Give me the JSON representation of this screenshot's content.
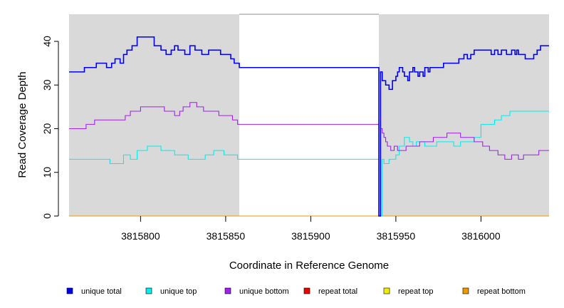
{
  "chart_data": {
    "type": "line",
    "title": "",
    "xlabel": "Coordinate in Reference Genome",
    "ylabel": "Read Coverage Depth",
    "xlim": [
      3815758,
      3816040
    ],
    "ylim": [
      0,
      46
    ],
    "x_ticks": [
      3815800,
      3815850,
      3815900,
      3815950,
      3816000
    ],
    "x_tick_labels": [
      "3815800",
      "3815850",
      "3815900",
      "3815950",
      "3816000"
    ],
    "y_ticks": [
      0,
      10,
      20,
      30,
      40
    ],
    "y_tick_labels": [
      "0",
      "10",
      "20",
      "30",
      "40"
    ],
    "uncovered_region": [
      3815858,
      3815940
    ],
    "grid": false,
    "legend_position": "bottom",
    "series": [
      {
        "name": "unique total",
        "color": "#0000ee",
        "x": [
          3815758,
          3815767,
          3815770,
          3815774,
          3815778,
          3815780,
          3815783,
          3815785,
          3815788,
          3815790,
          3815792,
          3815795,
          3815798,
          3815801,
          3815808,
          3815812,
          3815815,
          3815818,
          3815820,
          3815822,
          3815826,
          3815829,
          3815832,
          3815836,
          3815840,
          3815843,
          3815847,
          3815850,
          3815853,
          3815855,
          3815857,
          3815858,
          3815940,
          3815941,
          3815942,
          3815944,
          3815946,
          3815948,
          3815950,
          3815951,
          3815952,
          3815954,
          3815955,
          3815957,
          3815958,
          3815960,
          3815961,
          3815963,
          3815964,
          3815966,
          3815967,
          3815969,
          3815970,
          3815974,
          3815978,
          3815980,
          3815985,
          3815987,
          3815990,
          3815992,
          3815994,
          3815996,
          3816004,
          3816006,
          3816008,
          3816010,
          3816012,
          3816015,
          3816018,
          3816020,
          3816021,
          3816022,
          3816024,
          3816026,
          3816031,
          3816033,
          3816035,
          3816040
        ],
        "y": [
          33,
          34,
          34,
          35,
          35,
          34,
          35,
          36,
          35,
          37,
          38,
          39,
          41,
          41,
          39,
          38,
          37,
          38,
          39,
          38,
          37,
          39,
          38,
          37,
          38,
          38,
          37,
          37,
          36,
          35,
          35,
          34,
          0,
          33,
          31,
          30,
          29,
          31,
          32,
          33,
          34,
          33,
          32,
          31,
          33,
          34,
          33,
          32,
          33,
          32,
          34,
          33,
          34,
          34,
          35,
          35,
          35,
          36,
          37,
          36,
          37,
          38,
          38,
          37,
          38,
          37,
          38,
          37,
          38,
          37,
          38,
          37,
          37,
          36,
          37,
          38,
          39,
          39
        ]
      },
      {
        "name": "unique top",
        "color": "#00eeee",
        "x": [
          3815758,
          3815778,
          3815782,
          3815784,
          3815790,
          3815794,
          3815798,
          3815804,
          3815808,
          3815812,
          3815815,
          3815820,
          3815828,
          3815834,
          3815838,
          3815843,
          3815849,
          3815857,
          3815858,
          3815940,
          3815942,
          3815943,
          3815944,
          3815946,
          3815950,
          3815952,
          3815955,
          3815958,
          3815960,
          3815962,
          3815967,
          3815974,
          3815978,
          3815984,
          3815988,
          3815992,
          3815996,
          3816000,
          3816008,
          3816012,
          3816017,
          3816040
        ],
        "y": [
          13,
          13,
          12,
          12,
          14,
          13,
          15,
          16,
          16,
          15,
          15,
          14,
          13,
          13,
          14,
          15,
          14,
          13,
          13,
          0,
          13,
          12,
          12,
          13,
          14,
          16,
          18,
          17,
          16,
          17,
          16,
          17,
          17,
          16,
          17,
          17,
          18,
          21,
          22,
          23,
          24,
          24
        ],
        "dashed": true
      },
      {
        "name": "unique bottom",
        "color": "#a020f0",
        "x": [
          3815758,
          3815768,
          3815773,
          3815780,
          3815788,
          3815791,
          3815794,
          3815797,
          3815800,
          3815808,
          3815814,
          3815817,
          3815820,
          3815823,
          3815825,
          3815829,
          3815833,
          3815837,
          3815846,
          3815850,
          3815854,
          3815857,
          3815858,
          3815940,
          3815941,
          3815942,
          3815943,
          3815944,
          3815945,
          3815946,
          3815947,
          3815949,
          3815951,
          3815954,
          3815956,
          3815960,
          3815964,
          3815968,
          3815972,
          3815976,
          3815980,
          3815988,
          3815992,
          3815996,
          3815998,
          3816001,
          3816005,
          3816010,
          3816014,
          3816018,
          3816022,
          3816025,
          3816030,
          3816034,
          3816040
        ],
        "y": [
          20,
          21,
          22,
          22,
          22,
          23,
          24,
          24,
          25,
          25,
          24,
          24,
          23,
          24,
          25,
          26,
          25,
          24,
          23,
          23,
          22,
          21,
          21,
          0,
          20,
          19,
          18,
          17,
          16,
          16,
          15,
          16,
          15,
          15,
          16,
          16,
          17,
          17,
          18,
          18,
          19,
          18,
          18,
          17,
          17,
          16,
          15,
          14,
          13,
          14,
          13,
          14,
          14,
          15,
          15
        ]
      },
      {
        "name": "repeat total",
        "color": "#ee0000",
        "x": [
          3815758,
          3816040
        ],
        "y": [
          0,
          0
        ]
      },
      {
        "name": "repeat top",
        "color": "#eeee00",
        "x": [
          3815758,
          3816040
        ],
        "y": [
          0,
          0
        ]
      },
      {
        "name": "repeat bottom",
        "color": "#ee9a00",
        "x": [
          3815758,
          3816040
        ],
        "y": [
          0,
          0
        ]
      }
    ]
  }
}
